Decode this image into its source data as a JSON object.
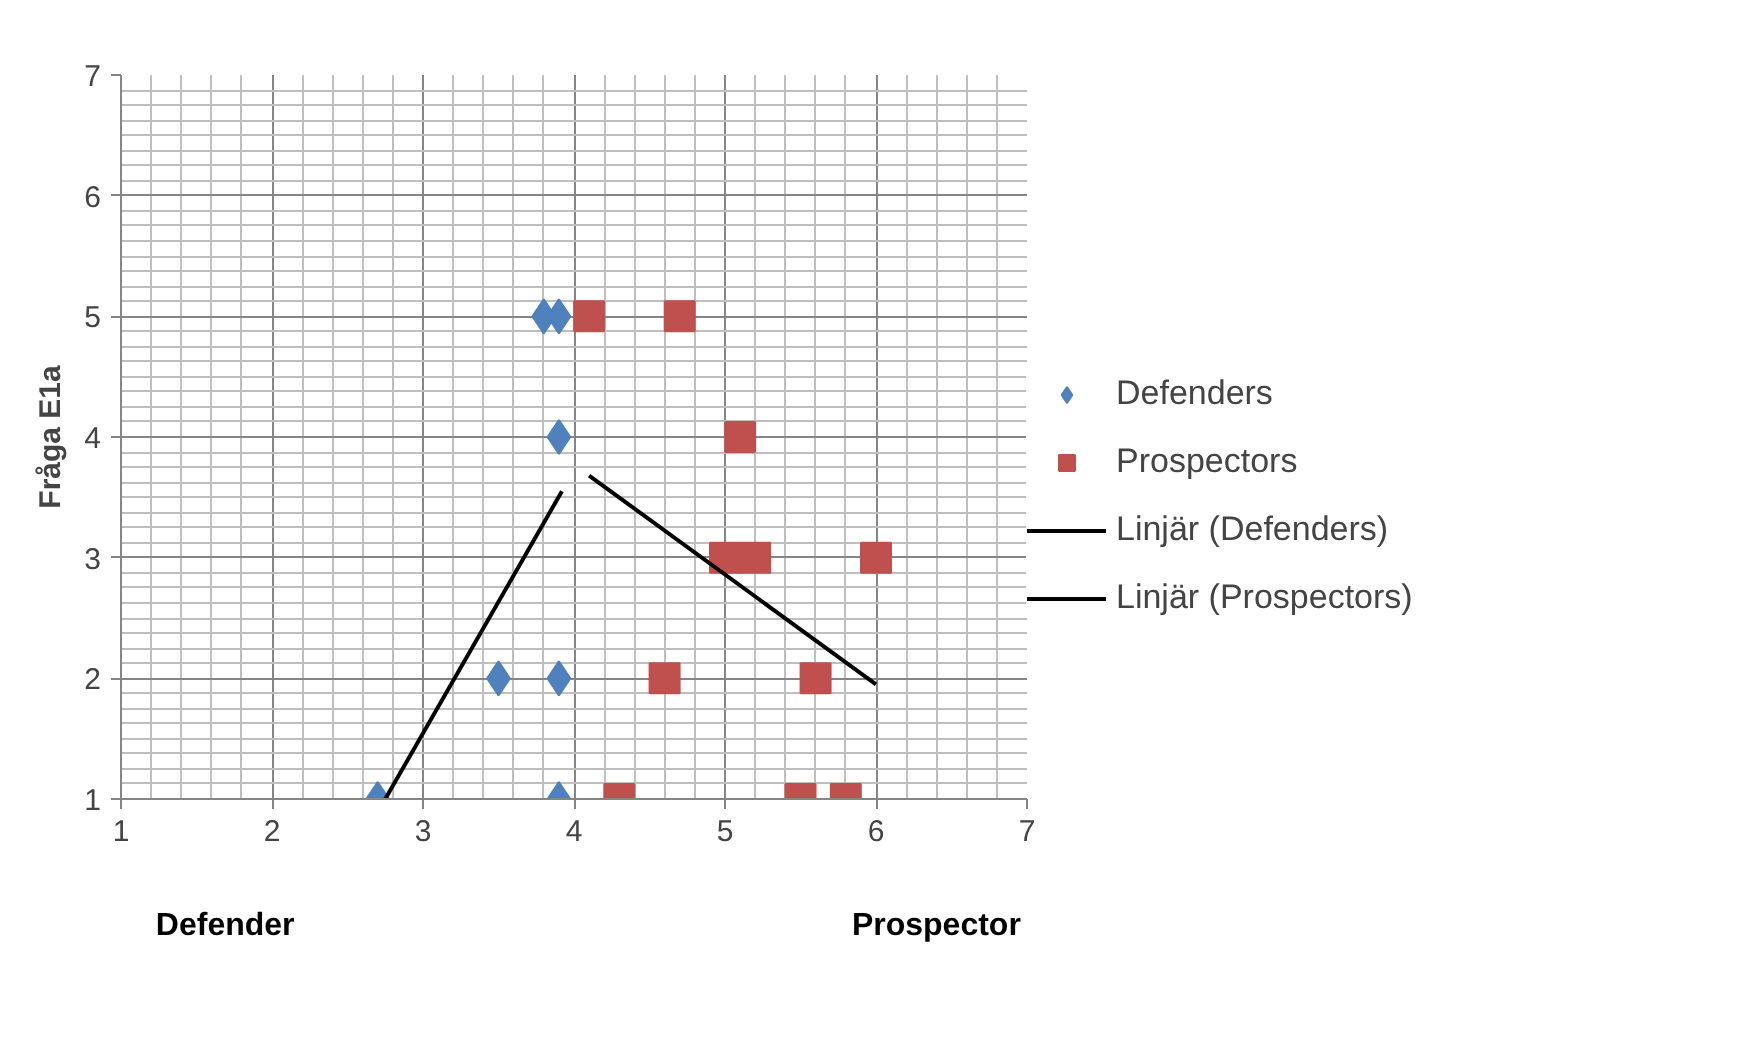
{
  "chart_data": {
    "type": "scatter",
    "ylabel": "Fråga E1a",
    "xlim": [
      1,
      7
    ],
    "ylim": [
      1,
      7
    ],
    "xticks": [
      1,
      2,
      3,
      4,
      5,
      6,
      7
    ],
    "yticks": [
      1,
      2,
      3,
      4,
      5,
      6,
      7
    ],
    "grid": true,
    "legend": "right",
    "series": [
      {
        "name": "Defenders",
        "marker": "diamond",
        "color": "#4f81bd",
        "x": [
          2.7,
          3.5,
          3.9,
          3.9,
          3.9,
          3.8,
          3.9
        ],
        "values": [
          1,
          2,
          2,
          1,
          4,
          5,
          5
        ]
      },
      {
        "name": "Prospectors",
        "marker": "square",
        "color": "#c0504d",
        "x": [
          4.1,
          4.7,
          5.1,
          5.0,
          5.2,
          6.0,
          4.6,
          5.6,
          4.3,
          5.5,
          5.8
        ],
        "values": [
          5,
          5,
          4,
          3,
          3,
          3,
          2,
          2,
          1,
          1,
          1
        ]
      },
      {
        "name": "Linjär (Defenders)",
        "type": "line",
        "color": "#000000",
        "x": [
          2.75,
          3.92
        ],
        "values": [
          1.0,
          3.55
        ]
      },
      {
        "name": "Linjär (Prospectors)",
        "type": "line",
        "color": "#000000",
        "x": [
          4.1,
          6.0
        ],
        "values": [
          3.68,
          1.95
        ]
      }
    ],
    "annotations": [
      "Defender",
      "Prospector"
    ]
  }
}
